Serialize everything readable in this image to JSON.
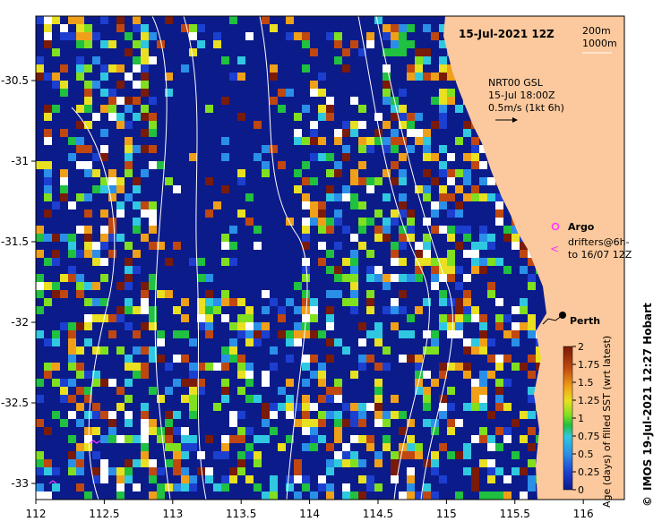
{
  "map": {
    "title": "15-Jul-2021 12Z",
    "depth_legend": [
      "200m",
      "1000m"
    ],
    "nrt_label": [
      "NRT00 GSL",
      "15-Jul 18:00Z",
      "0.5m/s (1kt 6h)"
    ],
    "argo_label": "Argo",
    "drifters_label": [
      "drifters@6h-",
      "to 16/07 12Z"
    ],
    "city_label": "Perth",
    "credit": "IMOS 19-Jul-2021 12:27 Hobart",
    "copyright_symbol": "©",
    "colors": {
      "land": "#fbc99d",
      "deep_ocean": "#0b1b8a",
      "argo_marker": "#ff33ff",
      "contour": "#ffffff"
    }
  },
  "axes": {
    "x_ticks": [
      "112",
      "112.5",
      "113",
      "113.5",
      "114",
      "114.5",
      "115",
      "115.5",
      "116"
    ],
    "y_ticks": [
      "-30.5",
      "-31",
      "-31.5",
      "-32",
      "-32.5",
      "-33"
    ],
    "xlim": [
      112,
      116.3
    ],
    "ylim": [
      -33.1,
      -30.1
    ]
  },
  "colorbar": {
    "label": "Age (days) of filled SST (wrt latest)",
    "ticks": [
      "2",
      "1.75",
      "1.5",
      "1.25",
      "1",
      "0.75",
      "0.5",
      "0.25",
      "0"
    ],
    "range": [
      0,
      2
    ]
  }
}
